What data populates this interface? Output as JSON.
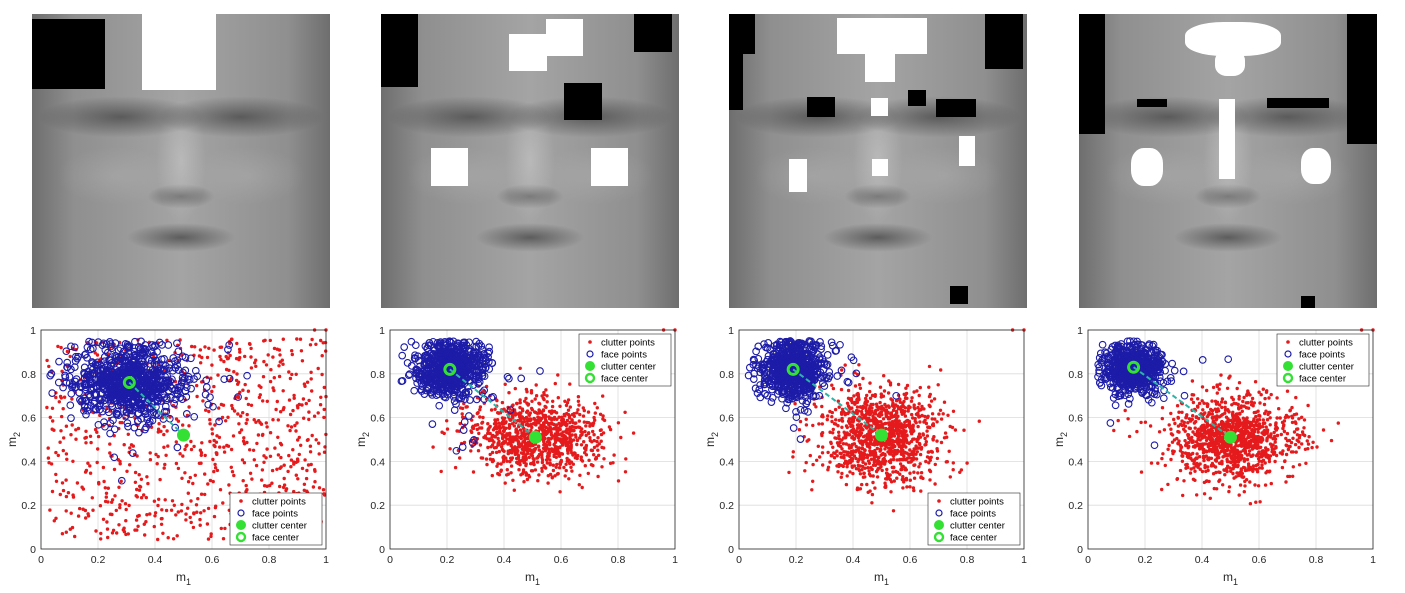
{
  "chart_data": [
    {
      "type": "scatter",
      "xlabel": "m",
      "xlabel_sub": "1",
      "ylabel": "m",
      "ylabel_sub": "2",
      "xlim": [
        0,
        1
      ],
      "ylim": [
        0,
        1
      ],
      "xticks": [
        "0",
        "0.2",
        "0.4",
        "0.6",
        "0.8",
        "1"
      ],
      "yticks": [
        "0",
        "0.2",
        "0.4",
        "0.6",
        "0.8",
        "1"
      ],
      "grid": true,
      "legend_position": "bottom-right",
      "legend": [
        "clutter points",
        "face points",
        "clutter center",
        "face center"
      ],
      "clutter_center": [
        0.5,
        0.52
      ],
      "face_center": [
        0.31,
        0.76
      ]
    },
    {
      "type": "scatter",
      "xlabel": "m",
      "xlabel_sub": "1",
      "ylabel": "m",
      "ylabel_sub": "2",
      "xlim": [
        0,
        1
      ],
      "ylim": [
        0,
        1
      ],
      "xticks": [
        "0",
        "0.2",
        "0.4",
        "0.6",
        "0.8",
        "1"
      ],
      "yticks": [
        "0",
        "0.2",
        "0.4",
        "0.6",
        "0.8",
        "1"
      ],
      "grid": true,
      "legend_position": "top-right",
      "legend": [
        "clutter points",
        "face points",
        "clutter center",
        "face center"
      ],
      "clutter_center": [
        0.51,
        0.51
      ],
      "face_center": [
        0.21,
        0.82
      ]
    },
    {
      "type": "scatter",
      "xlabel": "m",
      "xlabel_sub": "1",
      "ylabel": "m",
      "ylabel_sub": "2",
      "xlim": [
        0,
        1
      ],
      "ylim": [
        0,
        1
      ],
      "xticks": [
        "0",
        "0.2",
        "0.4",
        "0.6",
        "0.8",
        "1"
      ],
      "yticks": [
        "0",
        "0.2",
        "0.4",
        "0.6",
        "0.8",
        "1"
      ],
      "grid": true,
      "legend_position": "bottom-right",
      "legend": [
        "clutter points",
        "face points",
        "clutter center",
        "face center"
      ],
      "clutter_center": [
        0.5,
        0.52
      ],
      "face_center": [
        0.19,
        0.82
      ]
    },
    {
      "type": "scatter",
      "xlabel": "m",
      "xlabel_sub": "1",
      "ylabel": "m",
      "ylabel_sub": "2",
      "xlim": [
        0,
        1
      ],
      "ylim": [
        0,
        1
      ],
      "xticks": [
        "0",
        "0.2",
        "0.4",
        "0.6",
        "0.8",
        "1"
      ],
      "yticks": [
        "0",
        "0.2",
        "0.4",
        "0.6",
        "0.8",
        "1"
      ],
      "grid": true,
      "legend_position": "top-right",
      "legend": [
        "clutter points",
        "face points",
        "clutter center",
        "face center"
      ],
      "clutter_center": [
        0.5,
        0.51
      ],
      "face_center": [
        0.16,
        0.83
      ]
    }
  ],
  "colors": {
    "clutter": "#e41a1c",
    "face": "#1c1ca8",
    "center": "#33e033",
    "link": "#2ab5a8"
  }
}
